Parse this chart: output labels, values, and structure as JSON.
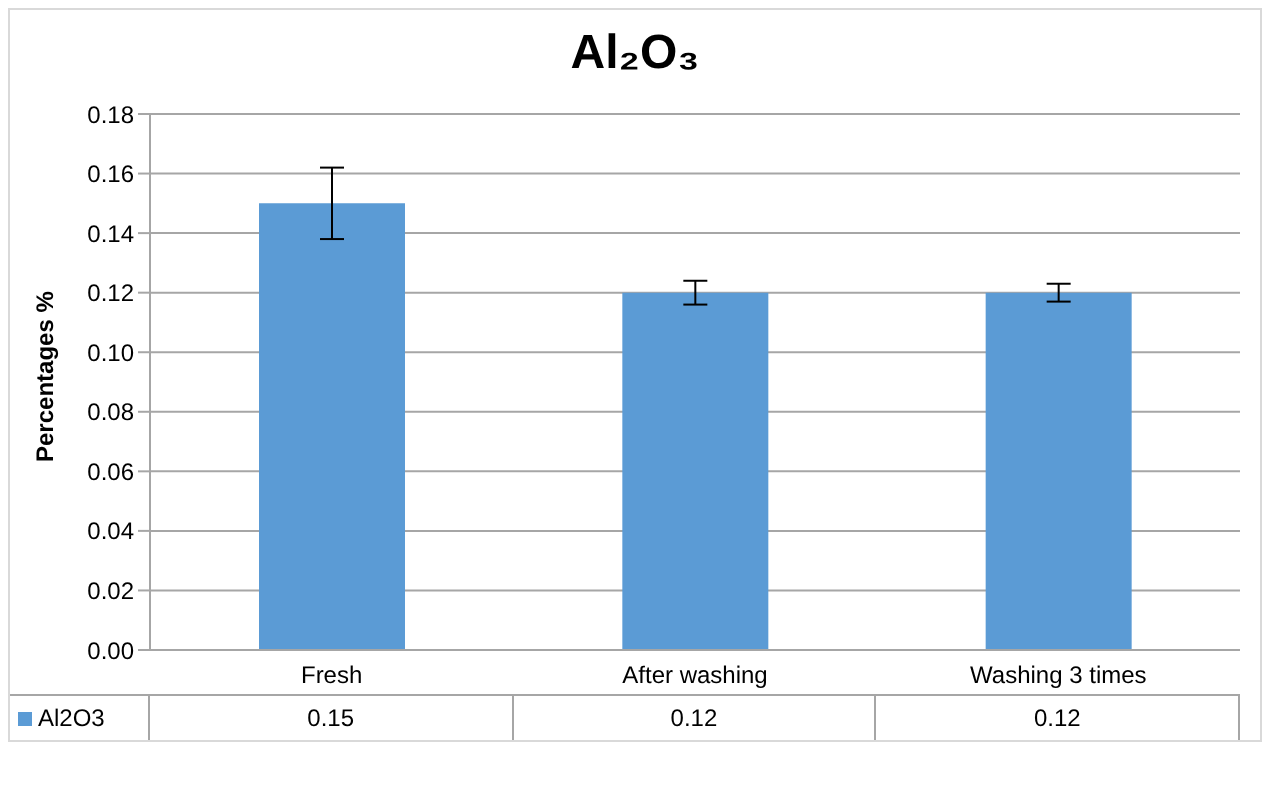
{
  "chart_data": {
    "type": "bar",
    "title": "Al₂O₃",
    "ylabel": "Percentages %",
    "categories": [
      "Fresh",
      "After washing",
      "Washing 3 times"
    ],
    "series": [
      {
        "name": "Al2O3",
        "color": "#5b9bd5",
        "values": [
          0.15,
          0.12,
          0.12
        ],
        "errors": [
          0.012,
          0.004,
          0.003
        ]
      }
    ],
    "ylim": [
      0,
      0.18
    ],
    "yticks": [
      {
        "value": 0,
        "label": "0.00"
      },
      {
        "value": 0.02,
        "label": "0.02"
      },
      {
        "value": 0.04,
        "label": "0.04"
      },
      {
        "value": 0.06,
        "label": "0.06"
      },
      {
        "value": 0.08,
        "label": "0.08"
      },
      {
        "value": 0.1,
        "label": "0.10"
      },
      {
        "value": 0.12,
        "label": "0.12"
      },
      {
        "value": 0.14,
        "label": "0.14"
      },
      {
        "value": 0.16,
        "label": "0.16"
      },
      {
        "value": 0.18,
        "label": "0.18"
      }
    ],
    "grid": "y",
    "legend": "bottom",
    "data_labels": true
  }
}
